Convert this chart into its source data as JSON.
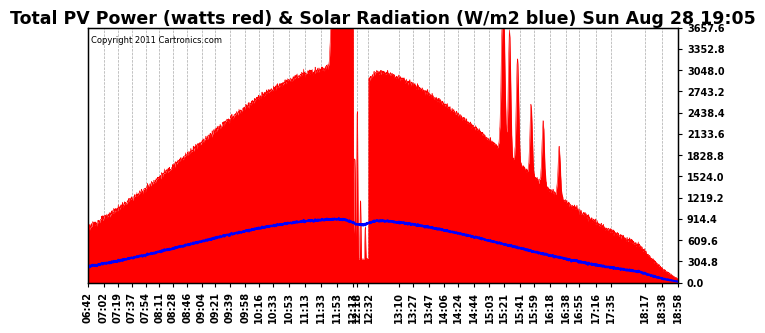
{
  "title": "Total PV Power (watts red) & Solar Radiation (W/m2 blue) Sun Aug 28 19:05",
  "copyright_text": "Copyright 2011 Cartronics.com",
  "yticks": [
    0.0,
    304.8,
    609.6,
    914.4,
    1219.2,
    1524.0,
    1828.8,
    2133.6,
    2438.4,
    2743.2,
    3048.0,
    3352.8,
    3657.6
  ],
  "ymax": 3657.6,
  "ymin": 0.0,
  "pv_color": "#FF0000",
  "solar_color": "#0000FF",
  "background_color": "#FFFFFF",
  "grid_color": "#AAAAAA",
  "title_fontsize": 12.5,
  "tick_fontsize": 7,
  "x_tick_labels": [
    "06:42",
    "07:02",
    "07:19",
    "07:37",
    "07:54",
    "08:11",
    "08:28",
    "08:46",
    "09:04",
    "09:21",
    "09:39",
    "09:58",
    "10:16",
    "10:33",
    "10:53",
    "11:13",
    "11:33",
    "11:53",
    "12:13",
    "12:18",
    "12:32",
    "13:10",
    "13:27",
    "13:47",
    "14:06",
    "14:24",
    "14:44",
    "15:03",
    "15:21",
    "15:41",
    "15:59",
    "16:18",
    "16:38",
    "16:55",
    "17:16",
    "17:35",
    "18:17",
    "18:38",
    "18:58"
  ]
}
